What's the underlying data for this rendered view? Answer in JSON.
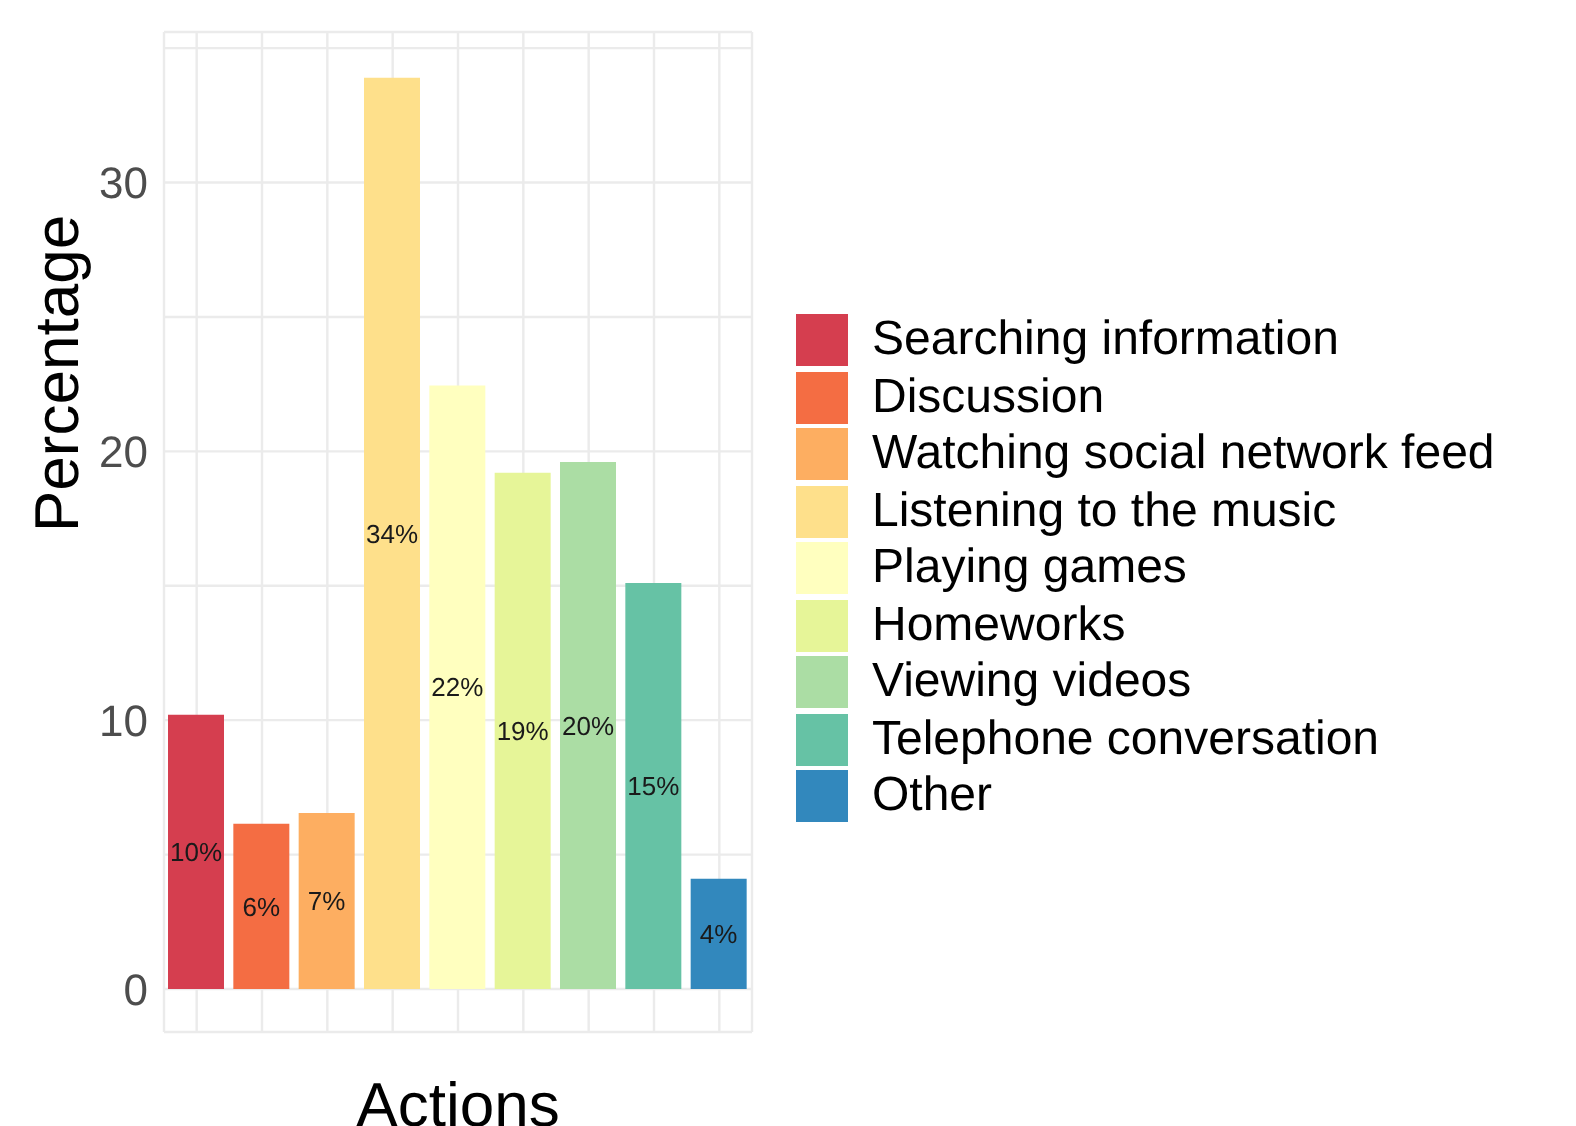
{
  "chart_data": {
    "type": "bar",
    "xlabel": "Actions",
    "ylabel": "Percentage",
    "stacked": true,
    "categories": [
      null,
      null,
      null,
      null,
      null,
      null,
      null,
      null,
      null
    ],
    "series": [
      {
        "name": "Searching information",
        "color": "#d53e4f",
        "values": [
          10.2,
          null,
          null,
          null,
          null,
          null,
          null,
          null,
          null
        ],
        "value_labels": [
          "10%",
          null,
          null,
          null,
          null,
          null,
          null,
          null,
          null
        ]
      },
      {
        "name": "Discussion",
        "color": "#f46d43",
        "values": [
          null,
          6.15,
          null,
          null,
          null,
          null,
          null,
          null,
          null
        ],
        "value_labels": [
          null,
          "6%",
          null,
          null,
          null,
          null,
          null,
          null,
          null
        ]
      },
      {
        "name": "Watching social network feed",
        "color": "#fdae61",
        "values": [
          null,
          null,
          6.55,
          null,
          null,
          null,
          null,
          null,
          null
        ],
        "value_labels": [
          null,
          null,
          "7%",
          null,
          null,
          null,
          null,
          null,
          null
        ]
      },
      {
        "name": "Listening to the music",
        "color": "#fee08b",
        "values": [
          null,
          null,
          null,
          33.9,
          null,
          null,
          null,
          null,
          null
        ],
        "value_labels": [
          null,
          null,
          null,
          "34%",
          null,
          null,
          null,
          null,
          null
        ]
      },
      {
        "name": "Playing games",
        "color": "#ffffbf",
        "values": [
          null,
          null,
          null,
          null,
          22.45,
          null,
          null,
          null,
          null
        ],
        "value_labels": [
          null,
          null,
          null,
          null,
          "22%",
          null,
          null,
          null,
          null
        ]
      },
      {
        "name": "Homeworks",
        "color": "#e6f598",
        "values": [
          null,
          null,
          null,
          null,
          null,
          19.2,
          null,
          null,
          null
        ],
        "value_labels": [
          null,
          null,
          null,
          null,
          null,
          "19%",
          null,
          null,
          null
        ]
      },
      {
        "name": "Viewing videos",
        "color": "#abdda4",
        "values": [
          null,
          null,
          null,
          null,
          null,
          null,
          19.6,
          null,
          null
        ],
        "value_labels": [
          null,
          null,
          null,
          null,
          null,
          null,
          "20%",
          null,
          null
        ]
      },
      {
        "name": "Telephone conversation",
        "color": "#66c2a5",
        "values": [
          null,
          null,
          null,
          null,
          null,
          null,
          null,
          15.1,
          null
        ],
        "value_labels": [
          null,
          null,
          null,
          null,
          null,
          null,
          null,
          "15%",
          null
        ]
      },
      {
        "name": "Other",
        "color": "#3288bd",
        "values": [
          null,
          null,
          null,
          null,
          null,
          null,
          null,
          null,
          4.1
        ],
        "value_labels": [
          null,
          null,
          null,
          null,
          null,
          null,
          null,
          null,
          "4%"
        ]
      }
    ],
    "ylim": [
      -1.6,
      35.6
    ],
    "yticks": [
      0,
      {
        "value": 5,
        "label": null
      },
      10,
      {
        "value": 15,
        "label": null
      },
      20,
      {
        "value": 25,
        "label": null
      },
      30,
      {
        "value": 35,
        "label": null
      }
    ],
    "grid": true,
    "legend": "right",
    "tick_labels": "y"
  }
}
